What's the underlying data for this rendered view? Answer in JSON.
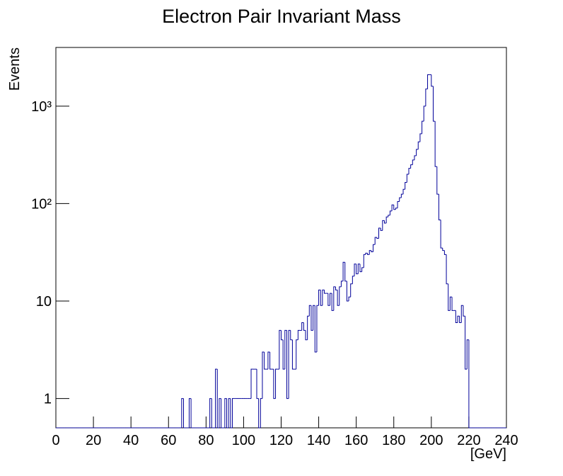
{
  "chart_data": {
    "type": "histogram",
    "title": "Electron Pair Invariant Mass",
    "x_label": "[GeV]",
    "y_label": "Events",
    "log_y": true,
    "color": "#000099",
    "bins": [
      0,
      1,
      2,
      3,
      4,
      5,
      6,
      7,
      8,
      9,
      10,
      11,
      12,
      13,
      14,
      15,
      16,
      17,
      18,
      19,
      20,
      21,
      22,
      23,
      24,
      25,
      26,
      27,
      28,
      29,
      30,
      31,
      32,
      33,
      34,
      35,
      36,
      37,
      38,
      39,
      40,
      41,
      42,
      43,
      44,
      45,
      46,
      47,
      48,
      49,
      50,
      51,
      52,
      53,
      54,
      55,
      56,
      57,
      58,
      59,
      60,
      61,
      62,
      63,
      64,
      65,
      66,
      67,
      68,
      69,
      70,
      71,
      72,
      73,
      74,
      75,
      76,
      77,
      78,
      79,
      80,
      81,
      82,
      83,
      84,
      85,
      86,
      87,
      88,
      89,
      90,
      91,
      92,
      93,
      94,
      95,
      96,
      97,
      98,
      99,
      100,
      101,
      102,
      103,
      104,
      105,
      106,
      107,
      108,
      109,
      110,
      111,
      112,
      113,
      114,
      115,
      116,
      117,
      118,
      119,
      120,
      121,
      122,
      123,
      124,
      125,
      126,
      127,
      128,
      129,
      130,
      131,
      132,
      133,
      134,
      135,
      136,
      137,
      138,
      139,
      140,
      141,
      142,
      143,
      144,
      145,
      146,
      147,
      148,
      149,
      150,
      151,
      152,
      153,
      154,
      155,
      156,
      157,
      158,
      159,
      160,
      161,
      162,
      163,
      164,
      165,
      166,
      167,
      168,
      169,
      170,
      171,
      172,
      173,
      174,
      175,
      176,
      177,
      178,
      179,
      180,
      181,
      182,
      183,
      184,
      185,
      186,
      187,
      188,
      189,
      190,
      191,
      192,
      193,
      194,
      195,
      196,
      197,
      198,
      199,
      200,
      201,
      202,
      203,
      204,
      205,
      206,
      207,
      208,
      209,
      210,
      211,
      212,
      213,
      214,
      215,
      216,
      217,
      218,
      219,
      220,
      221,
      222,
      223,
      224,
      225,
      226,
      227,
      228,
      229,
      230,
      231,
      232,
      233,
      234,
      235,
      236,
      237,
      238,
      239,
      240
    ],
    "values": [
      0,
      0,
      0,
      0,
      0,
      0,
      0,
      0,
      0,
      0,
      0,
      0,
      0,
      0,
      0,
      0,
      0,
      0,
      0,
      0,
      0,
      0,
      0,
      0,
      0,
      0,
      0,
      0,
      0,
      0,
      0,
      0,
      0,
      0,
      0,
      0,
      0,
      0,
      0,
      0,
      0,
      0,
      0,
      0,
      0,
      0,
      0,
      0,
      0,
      0,
      0,
      0,
      0,
      0,
      0,
      0,
      0,
      0,
      0,
      0,
      0,
      0,
      0,
      0,
      0,
      0,
      0,
      1,
      0,
      0,
      0,
      1,
      0,
      0,
      0,
      0,
      0,
      0,
      0,
      0,
      0,
      0,
      1,
      0,
      0,
      2,
      0,
      1,
      0,
      0,
      1,
      0,
      1,
      0,
      1,
      1,
      1,
      1,
      1,
      1,
      1,
      1,
      1,
      1,
      2,
      2,
      2,
      1,
      0,
      1,
      3,
      2,
      2,
      3,
      2,
      2,
      1,
      2,
      2,
      5,
      4,
      2,
      5,
      1,
      5,
      4,
      2,
      2,
      4,
      5,
      5,
      6,
      5,
      4,
      7,
      9,
      5,
      9,
      3,
      9,
      13,
      9,
      13,
      12,
      12,
      9,
      12,
      8,
      14,
      13,
      9,
      14,
      16,
      25,
      16,
      10,
      11,
      15,
      18,
      24,
      19,
      24,
      20,
      22,
      30,
      31,
      30,
      33,
      32,
      38,
      45,
      44,
      56,
      53,
      67,
      63,
      73,
      76,
      84,
      97,
      87,
      90,
      105,
      115,
      125,
      140,
      165,
      200,
      230,
      250,
      280,
      310,
      360,
      430,
      520,
      700,
      1000,
      1500,
      2100,
      2100,
      1600,
      700,
      240,
      125,
      68,
      35,
      33,
      30,
      15,
      8,
      11,
      8,
      8,
      6,
      7,
      6,
      9,
      7,
      2,
      4,
      0,
      0,
      0,
      0,
      0,
      0,
      0,
      0,
      0,
      0,
      0,
      0,
      0,
      0,
      0,
      0,
      0,
      0,
      0,
      0
    ],
    "xlim": [
      0,
      240
    ],
    "xticks": [
      0,
      20,
      40,
      60,
      80,
      100,
      120,
      140,
      160,
      180,
      200,
      220,
      240
    ],
    "ylim": [
      0.5,
      4000
    ],
    "yticks": [
      1,
      10,
      {
        "value": 100,
        "label": "10²"
      },
      {
        "value": 1000,
        "label": "10³"
      }
    ]
  }
}
